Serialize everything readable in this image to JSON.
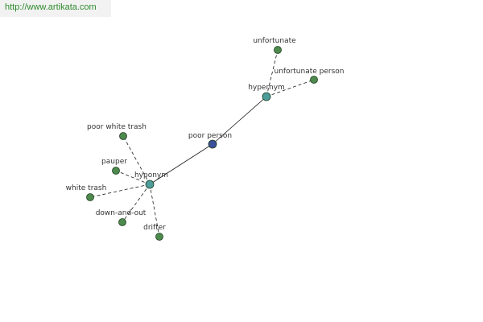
{
  "source_url": "http://www.artikata.com",
  "colors": {
    "center_node": "#3b4f9a",
    "relation_node": "#4c9c9c",
    "term_node": "#4d8a4d",
    "node_stroke": "#1f3f1f",
    "edge": "#1a1a1a",
    "banner_text": "#2e8b2e",
    "banner_bg": "#f2f2f2"
  },
  "graph": {
    "nodes": [
      {
        "id": "poor-person",
        "label": "poor person",
        "kind": "center"
      },
      {
        "id": "hypernym",
        "label": "hypernym",
        "kind": "relation"
      },
      {
        "id": "hyponym",
        "label": "hyponym",
        "kind": "relation"
      },
      {
        "id": "unfortunate",
        "label": "unfortunate",
        "kind": "term"
      },
      {
        "id": "unfortunate-person",
        "label": "unfortunate person",
        "kind": "term"
      },
      {
        "id": "poor-white-trash",
        "label": "poor white trash",
        "kind": "term"
      },
      {
        "id": "pauper",
        "label": "pauper",
        "kind": "term"
      },
      {
        "id": "white-trash",
        "label": "white trash",
        "kind": "term"
      },
      {
        "id": "down-and-out",
        "label": "down-and-out",
        "kind": "term"
      },
      {
        "id": "drifter",
        "label": "drifter",
        "kind": "term"
      }
    ],
    "edges": [
      {
        "from": "poor-person",
        "to": "hypernym",
        "style": "solid"
      },
      {
        "from": "poor-person",
        "to": "hyponym",
        "style": "solid"
      },
      {
        "from": "hypernym",
        "to": "unfortunate",
        "style": "dashed"
      },
      {
        "from": "hypernym",
        "to": "unfortunate-person",
        "style": "dashed"
      },
      {
        "from": "hyponym",
        "to": "poor-white-trash",
        "style": "dashed"
      },
      {
        "from": "hyponym",
        "to": "pauper",
        "style": "dashed"
      },
      {
        "from": "hyponym",
        "to": "white-trash",
        "style": "dashed"
      },
      {
        "from": "hyponym",
        "to": "down-and-out",
        "style": "dashed"
      },
      {
        "from": "hyponym",
        "to": "drifter",
        "style": "dashed"
      }
    ]
  }
}
